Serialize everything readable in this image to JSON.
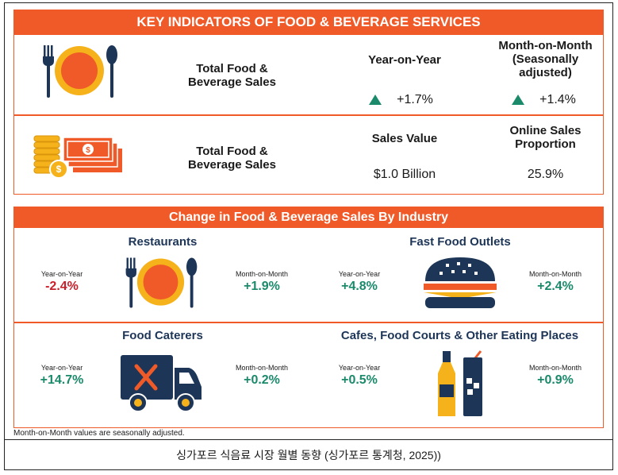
{
  "top_banner": "KEY INDICATORS OF FOOD & BEVERAGE SERVICES",
  "row1": {
    "label": "Total Food & Beverage Sales",
    "col1_header": "Year-on-Year",
    "col2_header": "Month-on-Month (Seasonally adjusted)",
    "col1_value": "+1.7%",
    "col2_value": "+1.4%",
    "icon": "plate-fork-spoon-icon"
  },
  "row2": {
    "label": "Total Food & Beverage Sales",
    "col1_header": "Sales Value",
    "col2_header": "Online Sales Proportion",
    "col1_value": "$1.0 Billion",
    "col2_value": "25.9%",
    "icon": "coins-cash-icon"
  },
  "industry_banner": "Change in Food & Beverage Sales By Industry",
  "industries": [
    {
      "name": "Restaurants",
      "yoy_label": "Year-on-Year",
      "yoy": "-2.4%",
      "mom_label": "Month-on-Month",
      "mom": "+1.9%",
      "icon": "plate-fork-spoon-icon"
    },
    {
      "name": "Fast Food Outlets",
      "yoy_label": "Year-on-Year",
      "yoy": "+4.8%",
      "mom_label": "Month-on-Month",
      "mom": "+2.4%",
      "icon": "burger-icon"
    },
    {
      "name": "Food Caterers",
      "yoy_label": "Year-on-Year",
      "yoy": "+14.7%",
      "mom_label": "Month-on-Month",
      "mom": "+0.2%",
      "icon": "delivery-truck-icon"
    },
    {
      "name": "Cafes, Food Courts & Other Eating Places",
      "yoy_label": "Year-on-Year",
      "yoy": "+0.5%",
      "mom_label": "Month-on-Month",
      "mom": "+0.9%",
      "icon": "drinks-icon"
    }
  ],
  "footnote": "Month-on-Month values are seasonally adjusted.",
  "caption": "싱가포르 식음료 시장 월별 동향 (싱가포르 통계청, 2025))",
  "colors": {
    "accent": "#ef5a28",
    "positive": "#1a8a6a",
    "negative": "#c8202a",
    "navy": "#1d3557"
  }
}
